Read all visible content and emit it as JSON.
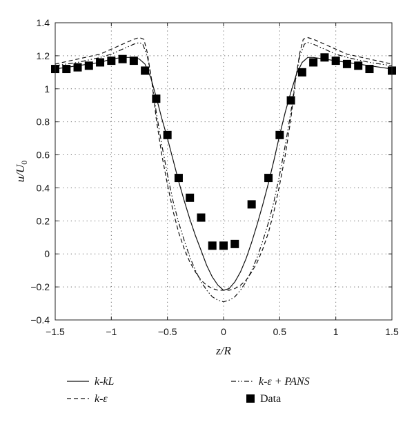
{
  "chart_data": {
    "type": "line",
    "xlabel": "z/R",
    "ylabel": "u/U0",
    "ylabel_main": "u/U",
    "ylabel_sub": "0",
    "xlim": [
      -1.5,
      1.5
    ],
    "ylim": [
      -0.4,
      1.4
    ],
    "xticks": [
      -1.5,
      -1,
      -0.5,
      0,
      0.5,
      1,
      1.5
    ],
    "xtick_labels": [
      "−1.5",
      "−1",
      "−0.5",
      "0",
      "0.5",
      "1",
      "1.5"
    ],
    "yticks": [
      -0.4,
      -0.2,
      0,
      0.2,
      0.4,
      0.6,
      0.8,
      1,
      1.2,
      1.4
    ],
    "ytick_labels": [
      "−0.4",
      "−0.2",
      "0",
      "0.2",
      "0.4",
      "0.6",
      "0.8",
      "1",
      "1.2",
      "1.4"
    ],
    "grid": true,
    "legend_position": "bottom",
    "series": [
      {
        "name": "k-kL",
        "style": "solid",
        "x": [
          -1.5,
          -1.3,
          -1.1,
          -1.0,
          -0.9,
          -0.8,
          -0.75,
          -0.7,
          -0.65,
          -0.6,
          -0.55,
          -0.5,
          -0.45,
          -0.4,
          -0.35,
          -0.3,
          -0.25,
          -0.2,
          -0.15,
          -0.1,
          -0.05,
          0,
          0.05,
          0.1,
          0.15,
          0.2,
          0.25,
          0.3,
          0.35,
          0.4,
          0.45,
          0.5,
          0.55,
          0.6,
          0.65,
          0.7,
          0.75,
          0.8,
          0.9,
          1.0,
          1.1,
          1.3,
          1.5
        ],
        "y": [
          1.12,
          1.14,
          1.16,
          1.18,
          1.19,
          1.19,
          1.18,
          1.15,
          1.07,
          0.95,
          0.82,
          0.7,
          0.57,
          0.44,
          0.32,
          0.21,
          0.11,
          0.02,
          -0.07,
          -0.14,
          -0.19,
          -0.22,
          -0.21,
          -0.17,
          -0.11,
          -0.03,
          0.07,
          0.18,
          0.3,
          0.43,
          0.57,
          0.72,
          0.86,
          0.98,
          1.09,
          1.16,
          1.19,
          1.19,
          1.18,
          1.17,
          1.16,
          1.14,
          1.12
        ]
      },
      {
        "name": "k-ε",
        "style": "dashed",
        "x": [
          -1.5,
          -1.3,
          -1.1,
          -1.0,
          -0.9,
          -0.8,
          -0.75,
          -0.71,
          -0.68,
          -0.64,
          -0.6,
          -0.55,
          -0.5,
          -0.45,
          -0.4,
          -0.35,
          -0.3,
          -0.25,
          -0.2,
          -0.15,
          -0.1,
          -0.05,
          0,
          0.05,
          0.1,
          0.15,
          0.2,
          0.25,
          0.3,
          0.35,
          0.4,
          0.45,
          0.5,
          0.55,
          0.6,
          0.64,
          0.68,
          0.71,
          0.75,
          0.8,
          0.9,
          1.0,
          1.1,
          1.3,
          1.5
        ],
        "y": [
          1.15,
          1.18,
          1.21,
          1.24,
          1.27,
          1.3,
          1.31,
          1.3,
          1.22,
          1.05,
          0.82,
          0.6,
          0.42,
          0.26,
          0.13,
          0.03,
          -0.05,
          -0.11,
          -0.16,
          -0.19,
          -0.21,
          -0.22,
          -0.22,
          -0.22,
          -0.21,
          -0.19,
          -0.16,
          -0.11,
          -0.05,
          0.03,
          0.13,
          0.26,
          0.42,
          0.6,
          0.82,
          1.05,
          1.22,
          1.3,
          1.31,
          1.3,
          1.27,
          1.24,
          1.21,
          1.18,
          1.15
        ]
      },
      {
        "name": "k-ε + PANS",
        "style": "dashdotdot",
        "x": [
          -1.5,
          -1.3,
          -1.1,
          -1.0,
          -0.9,
          -0.8,
          -0.75,
          -0.72,
          -0.68,
          -0.64,
          -0.6,
          -0.55,
          -0.5,
          -0.45,
          -0.4,
          -0.35,
          -0.3,
          -0.25,
          -0.2,
          -0.15,
          -0.1,
          -0.05,
          0,
          0.05,
          0.1,
          0.15,
          0.2,
          0.25,
          0.3,
          0.35,
          0.4,
          0.45,
          0.5,
          0.55,
          0.6,
          0.64,
          0.68,
          0.72,
          0.75,
          0.8,
          0.9,
          1.0,
          1.1,
          1.3,
          1.5
        ],
        "y": [
          1.14,
          1.16,
          1.19,
          1.21,
          1.24,
          1.27,
          1.28,
          1.27,
          1.2,
          1.05,
          0.86,
          0.66,
          0.48,
          0.32,
          0.19,
          0.08,
          -0.02,
          -0.1,
          -0.17,
          -0.22,
          -0.26,
          -0.28,
          -0.29,
          -0.28,
          -0.26,
          -0.22,
          -0.17,
          -0.1,
          -0.02,
          0.08,
          0.19,
          0.32,
          0.48,
          0.66,
          0.86,
          1.05,
          1.2,
          1.27,
          1.28,
          1.27,
          1.24,
          1.21,
          1.19,
          1.16,
          1.14
        ]
      },
      {
        "name": "Data",
        "style": "markers",
        "x": [
          -1.5,
          -1.4,
          -1.3,
          -1.2,
          -1.1,
          -1.0,
          -0.9,
          -0.8,
          -0.7,
          -0.6,
          -0.5,
          -0.4,
          -0.3,
          -0.2,
          -0.1,
          0,
          0.1,
          0.25,
          0.4,
          0.5,
          0.6,
          0.7,
          0.8,
          0.9,
          1.0,
          1.1,
          1.2,
          1.3,
          1.5
        ],
        "y": [
          1.12,
          1.12,
          1.13,
          1.14,
          1.16,
          1.17,
          1.18,
          1.17,
          1.11,
          0.94,
          0.72,
          0.46,
          0.34,
          0.22,
          0.05,
          0.05,
          0.06,
          0.3,
          0.46,
          0.72,
          0.93,
          1.1,
          1.16,
          1.19,
          1.17,
          1.15,
          1.14,
          1.12,
          1.11
        ]
      }
    ]
  }
}
